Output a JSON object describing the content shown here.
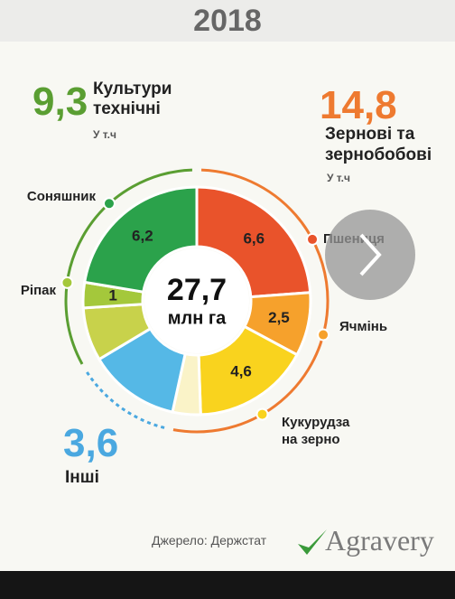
{
  "header": {
    "title": "2018"
  },
  "chart_data": {
    "type": "pie",
    "center_value": 27.7,
    "center_value_label": "27,7",
    "center_unit": "млн га",
    "categories": [
      "Пшениця",
      "Ячмінь",
      "Кукурудза на зерно",
      null,
      null,
      null,
      "Ріпак",
      "Соняшник"
    ],
    "values": [
      6.6,
      2.5,
      4.6,
      1.1,
      3.6,
      2.1,
      1,
      6.2
    ],
    "value_labels": [
      "6,6",
      "2,5",
      "4,6",
      null,
      null,
      null,
      "1",
      "6,2"
    ],
    "colors": [
      "#e9532b",
      "#f6a12c",
      "#f9d31e",
      "#faf3c8",
      "#55b8e6",
      "#c8d24b",
      "#a4c83b",
      "#2ba24b"
    ],
    "groups": [
      {
        "name": "Зернові та зернобобові",
        "value": 14.8,
        "value_label": "14,8",
        "note": "У т.ч",
        "color": "#ee7a30"
      },
      {
        "name": "Інші",
        "value": 3.6,
        "value_label": "3,6",
        "color": "#4aa8e0"
      },
      {
        "name": "Культури технічні",
        "value": 9.3,
        "value_label": "9,3",
        "note": "У т.ч",
        "color": "#5a9e32"
      }
    ]
  },
  "footer": {
    "source": "Джерело: Держстат",
    "logo": "Agravery"
  }
}
